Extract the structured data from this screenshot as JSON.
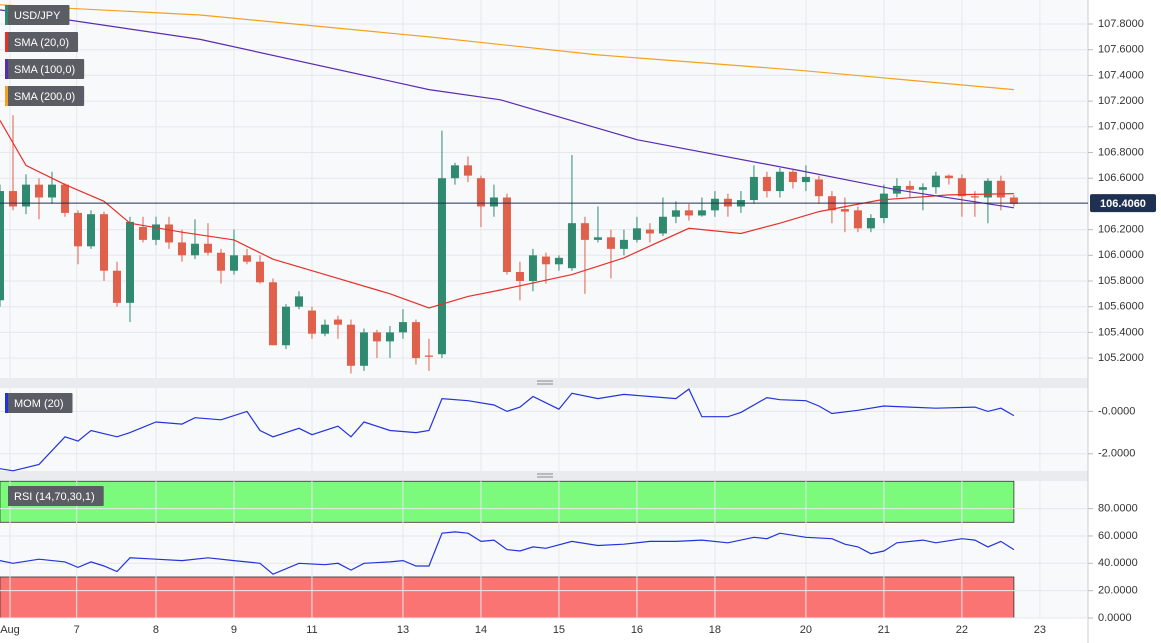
{
  "chart_data": [
    {
      "type": "candlestick",
      "title": "USD/JPY",
      "up_color": "#2f8a70",
      "down_color": "#e0604c",
      "open": [
        105.65,
        106.5,
        106.38,
        106.55,
        106.45,
        106.55,
        106.33,
        106.07,
        106.32,
        105.88,
        105.63,
        106.22,
        106.12,
        106.24,
        106.1,
        106.0,
        106.09,
        106.02,
        105.88,
        106.0,
        105.95,
        105.79,
        105.3,
        105.6,
        105.57,
        105.39,
        105.5,
        105.46,
        105.14,
        105.4,
        105.33,
        105.4,
        105.48,
        105.22,
        105.23,
        106.6,
        106.7,
        106.6,
        106.38,
        106.45,
        105.87,
        105.8,
        105.99,
        105.93,
        105.9,
        106.25,
        106.12,
        106.14,
        106.05,
        106.12,
        106.2,
        106.17,
        106.3,
        106.35,
        106.31,
        106.35,
        106.44,
        106.38,
        106.43,
        106.61,
        106.5,
        106.65,
        106.57,
        106.59,
        106.46,
        106.36,
        106.35,
        106.21,
        106.29,
        106.48,
        106.54,
        106.51,
        106.53,
        106.62,
        106.6,
        106.46,
        106.45,
        106.58,
        106.45
      ],
      "high": [
        106.55,
        107.09,
        106.63,
        106.6,
        106.65,
        106.56,
        106.35,
        106.35,
        106.34,
        105.95,
        106.3,
        106.3,
        106.3,
        106.3,
        106.2,
        106.28,
        106.25,
        106.05,
        106.2,
        106.05,
        106.0,
        105.82,
        105.62,
        105.72,
        105.6,
        105.5,
        105.53,
        105.5,
        105.43,
        105.42,
        105.45,
        105.58,
        105.5,
        105.35,
        106.97,
        106.72,
        106.77,
        106.62,
        106.55,
        106.48,
        105.95,
        106.05,
        106.02,
        106.0,
        106.78,
        106.3,
        106.38,
        106.2,
        106.2,
        106.3,
        106.25,
        106.45,
        106.42,
        106.4,
        106.45,
        106.5,
        106.48,
        106.5,
        106.7,
        106.65,
        106.68,
        106.67,
        106.7,
        106.62,
        106.5,
        106.45,
        106.38,
        106.32,
        106.55,
        106.6,
        106.58,
        106.56,
        106.65,
        106.63,
        106.63,
        106.5,
        106.6,
        106.62,
        106.47
      ],
      "low": [
        105.6,
        106.35,
        106.32,
        106.28,
        106.4,
        106.3,
        105.93,
        106.05,
        105.8,
        105.6,
        105.48,
        106.1,
        106.08,
        106.05,
        105.95,
        105.97,
        106.0,
        105.78,
        105.85,
        105.93,
        105.78,
        105.3,
        105.27,
        105.58,
        105.35,
        105.37,
        105.35,
        105.08,
        105.1,
        105.2,
        105.2,
        105.35,
        105.15,
        105.1,
        105.2,
        106.55,
        106.57,
        106.22,
        106.3,
        105.85,
        105.65,
        105.72,
        105.78,
        105.88,
        105.88,
        105.7,
        106.1,
        105.82,
        106.0,
        106.1,
        106.1,
        106.15,
        106.25,
        106.27,
        106.3,
        106.3,
        106.3,
        106.33,
        106.4,
        106.45,
        106.45,
        106.52,
        106.5,
        106.4,
        106.25,
        106.18,
        106.18,
        106.18,
        106.25,
        106.45,
        106.45,
        106.35,
        106.48,
        106.55,
        106.3,
        106.3,
        106.25,
        106.35,
        106.38
      ],
      "close": [
        106.5,
        106.38,
        106.55,
        106.45,
        106.55,
        106.33,
        106.07,
        106.32,
        105.88,
        105.63,
        106.26,
        106.12,
        106.24,
        106.1,
        106.0,
        106.09,
        106.02,
        105.88,
        106.0,
        105.95,
        105.79,
        105.3,
        105.6,
        105.68,
        105.39,
        105.46,
        105.46,
        105.14,
        105.4,
        105.33,
        105.4,
        105.48,
        105.2,
        105.21,
        106.6,
        106.7,
        106.62,
        106.38,
        106.45,
        105.87,
        105.8,
        106.0,
        105.93,
        105.98,
        106.25,
        106.12,
        106.14,
        106.05,
        106.12,
        106.21,
        106.17,
        106.3,
        106.35,
        106.31,
        106.35,
        106.44,
        106.38,
        106.43,
        106.61,
        106.5,
        106.65,
        106.57,
        106.61,
        106.46,
        106.35,
        106.34,
        106.21,
        106.29,
        106.48,
        106.54,
        106.51,
        106.53,
        106.62,
        106.6,
        106.46,
        106.45,
        106.58,
        106.45,
        106.4
      ],
      "series": [
        {
          "name": "SMA (20,0)",
          "color": "#e8302a",
          "x": [
            0,
            2,
            5,
            8,
            10,
            14,
            18,
            21,
            25,
            30,
            33,
            36,
            38.5,
            44,
            48,
            53,
            57,
            60,
            63,
            67.7,
            73,
            78
          ],
          "values": [
            107.05,
            106.7,
            106.55,
            106.42,
            106.25,
            106.18,
            106.12,
            105.97,
            105.85,
            105.7,
            105.59,
            105.68,
            105.73,
            105.85,
            105.98,
            106.21,
            106.17,
            106.25,
            106.34,
            106.43,
            106.47,
            106.48
          ]
        },
        {
          "name": "SMA (100,0)",
          "color": "#5a2bb3",
          "x": [
            0,
            15.4,
            33,
            38.5,
            49,
            61.5,
            69,
            78
          ],
          "values": [
            107.91,
            107.68,
            107.29,
            107.21,
            106.9,
            106.66,
            106.51,
            106.37
          ]
        },
        {
          "name": "SMA (200,0)",
          "color": "#f5a020",
          "x": [
            0,
            15.4,
            33,
            46,
            61.5,
            78
          ],
          "values": [
            107.95,
            107.87,
            107.7,
            107.56,
            107.44,
            107.29
          ]
        }
      ],
      "last_price": {
        "value": 106.406,
        "label": "106.4060"
      },
      "xlim": [
        0,
        83.7
      ],
      "xticks": [
        {
          "value": 0.77,
          "label": "Aug"
        },
        {
          "value": 5.9,
          "label": "7"
        },
        {
          "value": 12,
          "label": "8"
        },
        {
          "value": 18,
          "label": "9"
        },
        {
          "value": 24,
          "label": "11"
        },
        {
          "value": 31,
          "label": "13"
        },
        {
          "value": 37,
          "label": "14"
        },
        {
          "value": 43,
          "label": "15"
        },
        {
          "value": 49,
          "label": "16"
        },
        {
          "value": 55,
          "label": "18"
        },
        {
          "value": 62,
          "label": "20"
        },
        {
          "value": 68,
          "label": "21"
        },
        {
          "value": 74,
          "label": "22"
        },
        {
          "value": 80,
          "label": "23"
        }
      ],
      "ylim": [
        105.045,
        107.987
      ],
      "yticks": [
        {
          "value": 105.2,
          "label": "105.2000"
        },
        {
          "value": 105.4,
          "label": "105.4000"
        },
        {
          "value": 105.6,
          "label": "105.6000"
        },
        {
          "value": 105.8,
          "label": "105.8000"
        },
        {
          "value": 106.0,
          "label": "106.0000"
        },
        {
          "value": 106.2,
          "label": "106.2000"
        },
        {
          "value": 106.6,
          "label": "106.6000"
        },
        {
          "value": 106.8,
          "label": "106.8000"
        },
        {
          "value": 107.0,
          "label": "107.0000"
        },
        {
          "value": 107.2,
          "label": "107.2000"
        },
        {
          "value": 107.4,
          "label": "107.4000"
        },
        {
          "value": 107.6,
          "label": "107.6000"
        },
        {
          "value": 107.8,
          "label": "107.8000"
        }
      ],
      "grid": true
    },
    {
      "type": "line",
      "series": [
        {
          "name": "MOM (20)",
          "color": "#2233dd",
          "x": [
            0,
            1,
            3,
            5,
            6,
            7,
            9,
            10,
            12,
            14,
            15,
            17,
            19,
            20,
            21,
            23,
            24,
            26,
            27,
            28,
            30,
            32,
            33,
            34,
            36,
            38,
            39,
            40,
            41,
            43,
            44,
            46,
            48,
            50,
            52,
            53,
            54,
            56,
            57,
            59,
            60,
            62,
            63,
            64,
            66,
            68,
            70,
            72,
            75,
            76,
            77,
            78
          ],
          "values": [
            -2.7,
            -2.8,
            -2.5,
            -1.2,
            -1.4,
            -0.9,
            -1.2,
            -1.0,
            -0.5,
            -0.6,
            -0.3,
            -0.4,
            0.0,
            -0.9,
            -1.2,
            -0.8,
            -1.1,
            -0.7,
            -1.2,
            -0.5,
            -0.9,
            -1.0,
            -0.9,
            0.6,
            0.5,
            0.3,
            0.0,
            0.2,
            0.7,
            0.1,
            0.85,
            0.6,
            0.8,
            0.7,
            0.6,
            1.05,
            -0.25,
            -0.25,
            -0.05,
            0.65,
            0.55,
            0.5,
            0.25,
            -0.1,
            0.05,
            0.25,
            0.2,
            0.15,
            0.2,
            0.0,
            0.15,
            -0.2
          ]
        }
      ],
      "ylim": [
        -2.81,
        1.1
      ],
      "yticks": [
        {
          "value": 0,
          "label": "-0.0000"
        },
        {
          "value": -2,
          "label": "-2.0000"
        }
      ],
      "grid": true
    },
    {
      "type": "line",
      "series": [
        {
          "name": "RSI (14,70,30,1)",
          "color": "#2233dd",
          "x": [
            0,
            1,
            3,
            5,
            6,
            7,
            8,
            9,
            10,
            12,
            14,
            16,
            18,
            20,
            21,
            23,
            25,
            26,
            27,
            28,
            30,
            31,
            32,
            33,
            34,
            35,
            36,
            37,
            38,
            39,
            40,
            41,
            42,
            44,
            46,
            48,
            50,
            52,
            54,
            56,
            58,
            59,
            60,
            62,
            64,
            65,
            66,
            67,
            68,
            69,
            71,
            72,
            74,
            75,
            76,
            77,
            78
          ],
          "values": [
            42,
            40,
            43,
            41,
            37,
            41,
            38,
            34,
            44,
            43,
            42,
            44,
            42,
            40,
            32,
            40,
            39,
            40,
            35,
            40,
            41,
            42,
            38,
            38,
            62,
            63,
            62,
            56,
            57,
            50,
            49,
            52,
            51,
            56,
            53,
            54,
            56,
            56,
            57,
            55,
            59,
            58,
            62,
            59,
            58,
            54,
            52,
            47,
            49,
            55,
            57,
            55,
            58,
            57,
            52,
            56,
            50
          ]
        }
      ],
      "bands": [
        {
          "from": 70,
          "to": 100,
          "color": "#7bfa7b"
        },
        {
          "from": 0,
          "to": 30,
          "color": "#fb7474"
        }
      ],
      "ylim": [
        0,
        100.2
      ],
      "yticks": [
        {
          "value": 80,
          "label": "80.0000"
        },
        {
          "value": 60,
          "label": "60.0000"
        },
        {
          "value": 40,
          "label": "40.0000"
        },
        {
          "value": 20,
          "label": "20.0000"
        },
        {
          "value": 0,
          "label": "0.0000"
        }
      ],
      "grid": true
    }
  ]
}
